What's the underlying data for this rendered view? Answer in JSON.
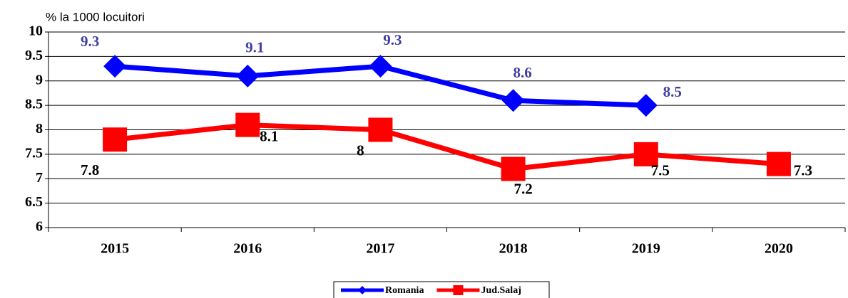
{
  "chart_data": {
    "type": "line",
    "y_label": "% la 1000 locuitori",
    "categories": [
      "2015",
      "2016",
      "2017",
      "2018",
      "2019",
      "2020"
    ],
    "series": [
      {
        "name": "Romania",
        "color": "#0000ff",
        "label_color": "#3f3f9f",
        "marker": "diamond",
        "values": [
          9.3,
          9.1,
          9.3,
          8.6,
          8.5,
          null
        ]
      },
      {
        "name": "Jud.Salaj",
        "color": "#ff0000",
        "label_color": "#000000",
        "marker": "square",
        "values": [
          7.8,
          8.1,
          8,
          7.2,
          7.5,
          7.3
        ]
      }
    ],
    "ylim": [
      6,
      10
    ],
    "yticks": [
      6,
      6.5,
      7,
      7.5,
      8,
      8.5,
      9,
      9.5,
      10
    ],
    "grid": true,
    "legend": "bottom"
  }
}
